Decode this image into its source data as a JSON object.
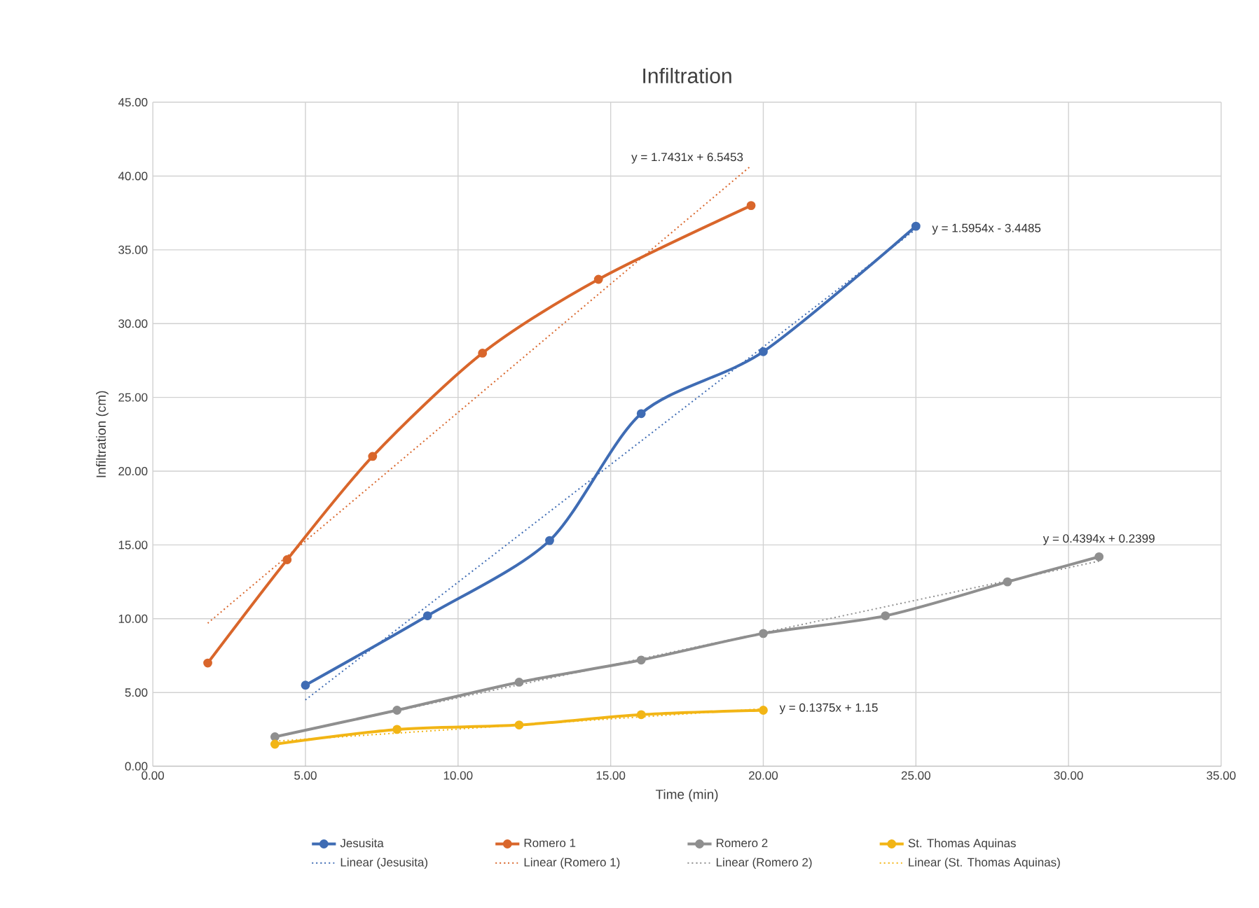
{
  "chart_data": {
    "type": "line",
    "title": "Infiltration",
    "xlabel": "Time (min)",
    "ylabel": "Infiltration (cm)",
    "xlim": [
      0,
      35
    ],
    "ylim": [
      0,
      45
    ],
    "xticks": [
      {
        "value": 0,
        "label": "0.00"
      },
      {
        "value": 5,
        "label": "5.00"
      },
      {
        "value": 10,
        "label": "10.00"
      },
      {
        "value": 15,
        "label": "15.00"
      },
      {
        "value": 20,
        "label": "20.00"
      },
      {
        "value": 25,
        "label": "25.00"
      },
      {
        "value": 30,
        "label": "30.00"
      },
      {
        "value": 35,
        "label": "35.00"
      }
    ],
    "yticks": [
      {
        "value": 0,
        "label": "0.00"
      },
      {
        "value": 5,
        "label": "5.00"
      },
      {
        "value": 10,
        "label": "10.00"
      },
      {
        "value": 15,
        "label": "15.00"
      },
      {
        "value": 20,
        "label": "20.00"
      },
      {
        "value": 25,
        "label": "25.00"
      },
      {
        "value": 30,
        "label": "30.00"
      },
      {
        "value": 35,
        "label": "35.00"
      },
      {
        "value": 40,
        "label": "40.00"
      },
      {
        "value": 45,
        "label": "45.00"
      }
    ],
    "grid": true,
    "legend": "bottom",
    "series": [
      {
        "name": "Jesusita",
        "color": "#3f6cb4",
        "marker": "circle",
        "line_style": "solid",
        "x": [
          5,
          9,
          13,
          16,
          20,
          25
        ],
        "values": [
          5.5,
          10.2,
          15.3,
          23.9,
          28.1,
          36.6
        ]
      },
      {
        "name": "Romero 1",
        "color": "#d9662b",
        "marker": "circle",
        "line_style": "solid",
        "x": [
          1.8,
          4.4,
          7.2,
          10.8,
          14.6,
          19.6
        ],
        "values": [
          7.0,
          14.0,
          21.0,
          28.0,
          33.0,
          38.0
        ]
      },
      {
        "name": "Romero 2",
        "color": "#8f8f8f",
        "marker": "circle",
        "line_style": "solid",
        "x": [
          4,
          8,
          12,
          16,
          20,
          24,
          28,
          31
        ],
        "values": [
          2.0,
          3.8,
          5.7,
          7.2,
          9.0,
          10.2,
          12.5,
          14.2
        ]
      },
      {
        "name": "St. Thomas Aquinas",
        "color": "#f2b515",
        "marker": "circle",
        "line_style": "solid",
        "x": [
          4,
          8,
          12,
          16,
          20
        ],
        "values": [
          1.5,
          2.5,
          2.8,
          3.5,
          3.8
        ]
      },
      {
        "name": "Linear (Jesusita)",
        "color": "#3f6cb4",
        "marker": "none",
        "line_style": "dotted",
        "x": [
          5,
          25
        ],
        "values": [
          4.5,
          36.4
        ]
      },
      {
        "name": "Linear (Romero 1)",
        "color": "#d9662b",
        "marker": "none",
        "line_style": "dotted",
        "x": [
          1.8,
          19.6
        ],
        "values": [
          9.7,
          40.7
        ]
      },
      {
        "name": "Linear (Romero 2)",
        "color": "#8f8f8f",
        "marker": "none",
        "line_style": "dotted",
        "x": [
          4,
          31
        ],
        "values": [
          2.0,
          13.9
        ]
      },
      {
        "name": "Linear (St. Thomas Aquinas)",
        "color": "#f2b515",
        "marker": "none",
        "line_style": "dotted",
        "x": [
          4,
          20
        ],
        "values": [
          1.7,
          3.9
        ]
      }
    ],
    "annotations": [
      {
        "text": "y = 1.7431x + 6.5453",
        "x": 19.6,
        "y": 40.7
      },
      {
        "text": "y = 1.5954x - 3.4485",
        "x": 25,
        "y": 36.4
      },
      {
        "text": "y = 0.4394x + 0.2399",
        "x": 31,
        "y": 13.9
      },
      {
        "text": "y = 0.1375x + 1.15",
        "x": 20,
        "y": 3.9
      }
    ]
  }
}
